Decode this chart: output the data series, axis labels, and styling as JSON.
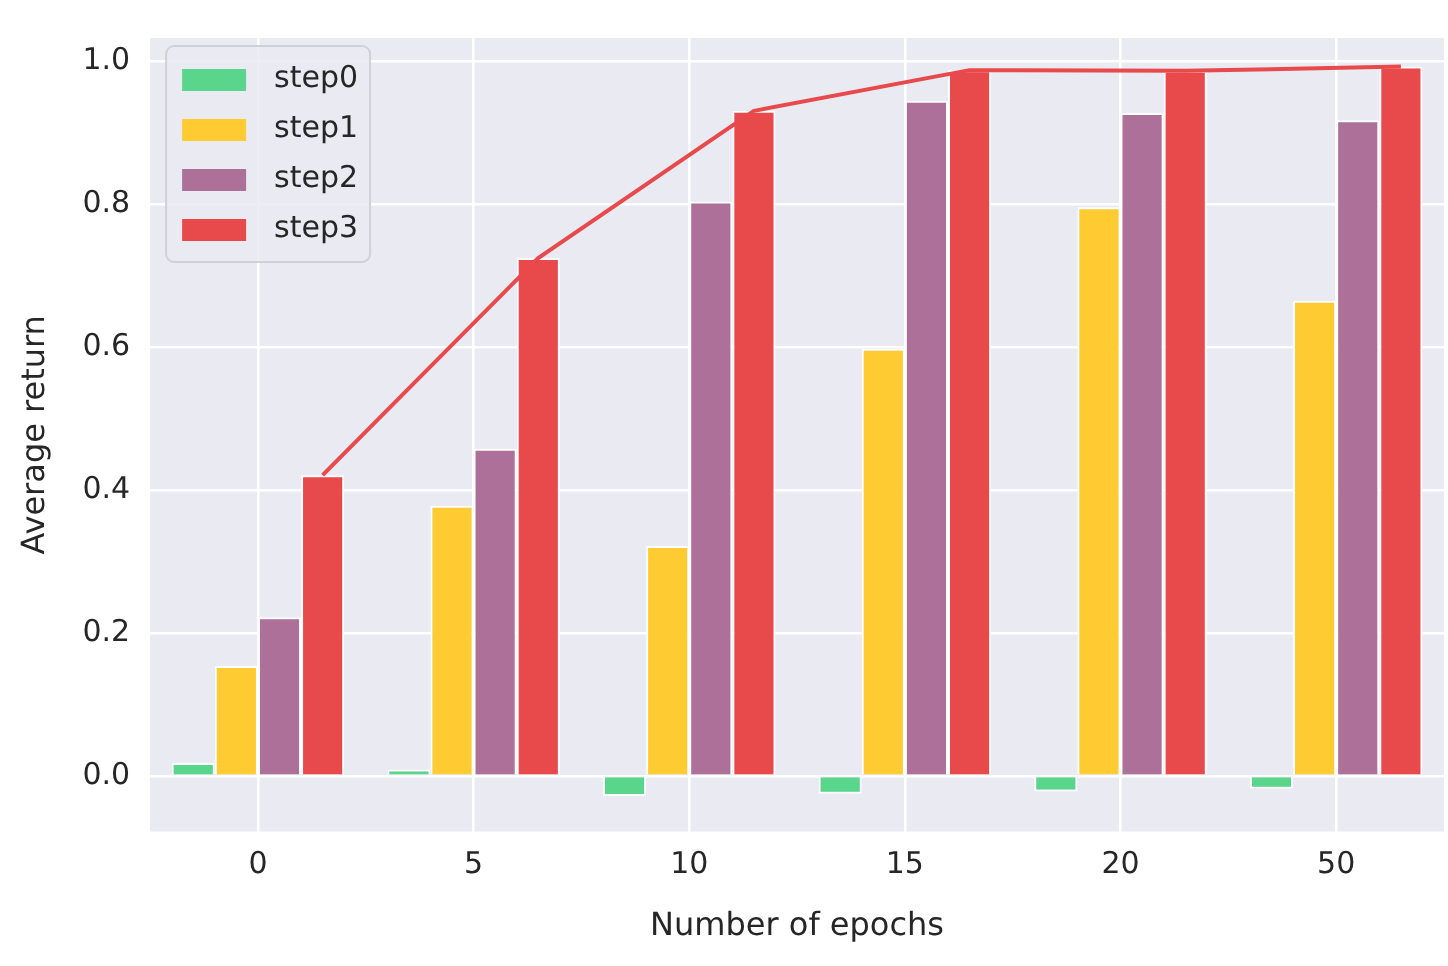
{
  "chart_data": {
    "type": "bar",
    "xlabel": "Number of epochs",
    "ylabel": "Average return",
    "categories": [
      "0",
      "5",
      "10",
      "15",
      "20",
      "50"
    ],
    "series": [
      {
        "name": "step0",
        "color": "#59d68c",
        "values": [
          0.018,
          0.009,
          -0.028,
          -0.025,
          -0.022,
          -0.018
        ]
      },
      {
        "name": "step1",
        "color": "#ffcb33",
        "values": [
          0.154,
          0.378,
          0.322,
          0.598,
          0.796,
          0.665
        ]
      },
      {
        "name": "step2",
        "color": "#ad7098",
        "values": [
          0.222,
          0.458,
          0.804,
          0.945,
          0.928,
          0.918
        ]
      },
      {
        "name": "step3",
        "color": "#e8494a",
        "values": [
          0.421,
          0.725,
          0.931,
          0.988,
          0.987,
          0.993
        ]
      },
      {
        "type": "line",
        "color": "#e8494a",
        "values": [
          0.421,
          0.725,
          0.931,
          0.988,
          0.987,
          0.993
        ]
      }
    ],
    "ylim": [
      -0.078,
      1.033
    ],
    "yticks": [
      {
        "value": 0,
        "label": "0.0"
      },
      {
        "value": 0.2,
        "label": "0.2"
      },
      {
        "value": 0.4,
        "label": "0.4"
      },
      {
        "value": 0.6,
        "label": "0.6"
      },
      {
        "value": 0.8,
        "label": "0.8"
      },
      {
        "value": 1,
        "label": "1.0"
      }
    ],
    "grid": true,
    "legend": "top left",
    "marker": "none"
  }
}
